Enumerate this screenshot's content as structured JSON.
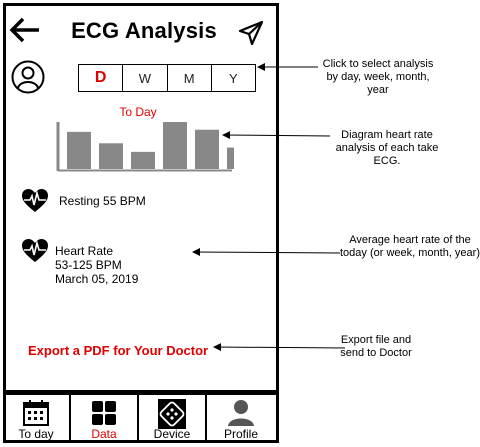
{
  "header": {
    "title": "ECG Analysis"
  },
  "icons": {
    "back": "arrow-left-icon",
    "send": "send-icon",
    "avatar": "user-avatar-icon",
    "heart": "heart-pulse-icon"
  },
  "period": {
    "options": [
      "D",
      "W",
      "M",
      "Y"
    ],
    "selected": "D"
  },
  "today_label": "To Day",
  "chart_data": {
    "type": "bar",
    "values": [
      52,
      36,
      24,
      66,
      55,
      30
    ],
    "color": "#888888"
  },
  "resting": {
    "text": "Resting 55 BPM"
  },
  "heart_rate": {
    "label": "Heart Rate",
    "range": "53-125 BPM",
    "date": "March 05, 2019"
  },
  "export": {
    "label": "Export a PDF for Your Doctor"
  },
  "nav": {
    "tabs": [
      {
        "label": "To day",
        "icon": "calendar-icon"
      },
      {
        "label": "Data",
        "icon": "grid-icon"
      },
      {
        "label": "Device",
        "icon": "device-icon"
      },
      {
        "label": "Profile",
        "icon": "profile-icon"
      }
    ],
    "active": "Data"
  },
  "annotations": {
    "period": "Click to select analysis by day, week, month, year",
    "chart": "Diagram heart rate analysis of each take ECG.",
    "average": "Average heart rate of the today (or week, month, year)",
    "export": "Export file and send to Doctor"
  },
  "colors": {
    "accent": "#e00000",
    "bar": "#888888"
  }
}
